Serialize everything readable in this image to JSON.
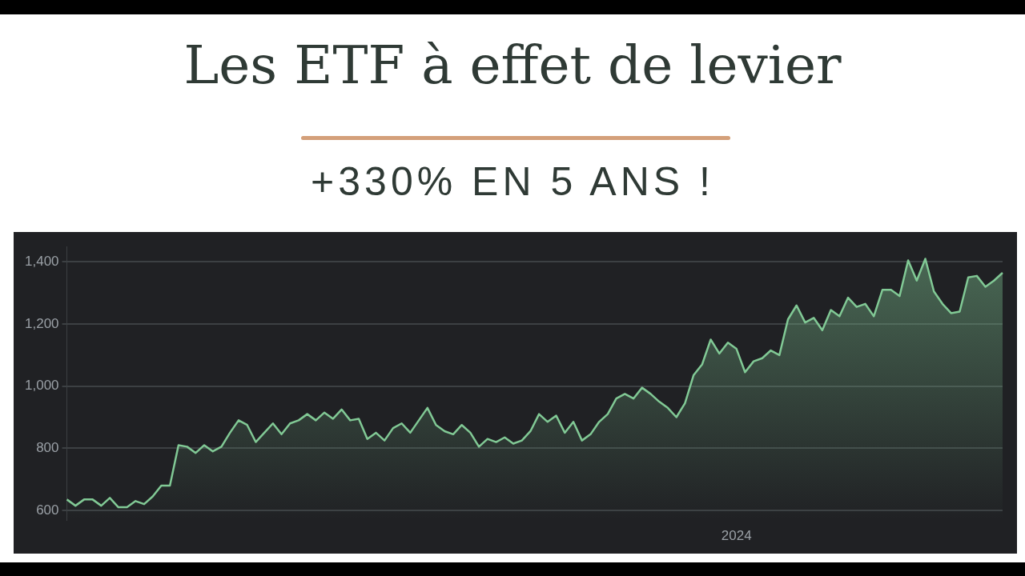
{
  "chart_data": {
    "type": "area",
    "title": "Les ETF à effet de levier",
    "subtitle": "+330% EN 5 ANS !",
    "categories": [
      null,
      null,
      null,
      null,
      null,
      null,
      null,
      null,
      null,
      null,
      null,
      null,
      null,
      null,
      null,
      null,
      null,
      null,
      null,
      null,
      null,
      null,
      null,
      null,
      null,
      null,
      null,
      null,
      null,
      null,
      null,
      null,
      null,
      null,
      null,
      null,
      null,
      null,
      null,
      null,
      null,
      null,
      null,
      null,
      null,
      null,
      null,
      null,
      null,
      null,
      null,
      null,
      null,
      null,
      null,
      null,
      null,
      null,
      null,
      null,
      null,
      null,
      null,
      null,
      null,
      null,
      null,
      null,
      null,
      null,
      null,
      null,
      null,
      null,
      null,
      null,
      null,
      null,
      "2024",
      null,
      null,
      null,
      null,
      null,
      null,
      null,
      null,
      null,
      null,
      null,
      null,
      null,
      null,
      null,
      null,
      null,
      null,
      null,
      null,
      null,
      null,
      null,
      null,
      null,
      null,
      null,
      null,
      null,
      null,
      null
    ],
    "series": [
      {
        "color": "#81c995",
        "values": [
          635,
          615,
          635,
          635,
          615,
          640,
          610,
          610,
          630,
          620,
          645,
          680,
          680,
          810,
          805,
          785,
          810,
          790,
          805,
          850,
          890,
          875,
          820,
          850,
          880,
          845,
          880,
          890,
          910,
          890,
          915,
          895,
          925,
          890,
          895,
          830,
          850,
          825,
          865,
          880,
          850,
          890,
          930,
          875,
          855,
          845,
          875,
          850,
          805,
          830,
          820,
          835,
          815,
          825,
          855,
          910,
          885,
          905,
          850,
          885,
          825,
          845,
          885,
          910,
          960,
          975,
          960,
          995,
          975,
          950,
          930,
          900,
          945,
          1035,
          1070,
          1150,
          1105,
          1140,
          1120,
          1045,
          1080,
          1090,
          1115,
          1100,
          1215,
          1260,
          1205,
          1220,
          1180,
          1245,
          1225,
          1285,
          1255,
          1265,
          1225,
          1310,
          1310,
          1290,
          1405,
          1340,
          1410,
          1305,
          1265,
          1235,
          1240,
          1350,
          1355,
          1320,
          1340,
          1365
        ]
      }
    ],
    "ylim": [
      570,
      1450
    ],
    "yticks": [
      600,
      {
        "value": 800,
        "label": "800"
      },
      {
        "value": 1000,
        "label": "1,000"
      },
      {
        "value": 1200,
        "label": "1,200"
      },
      {
        "value": 1400,
        "label": "1,400"
      }
    ],
    "grid": "y",
    "legend": false,
    "marker": "none",
    "line_style": "solid"
  }
}
